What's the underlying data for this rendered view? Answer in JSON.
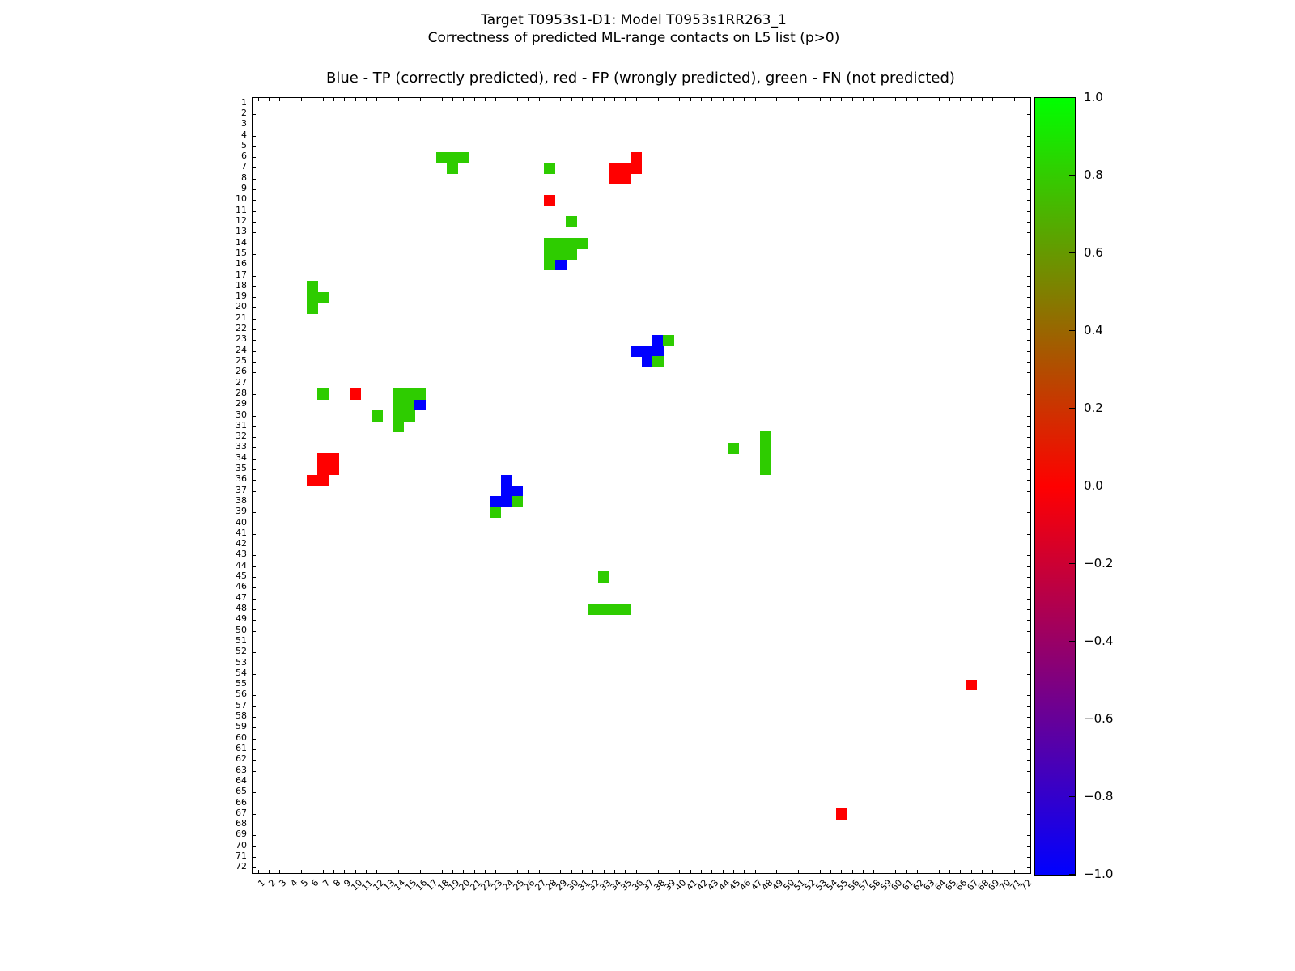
{
  "title_line1": "Target T0953s1-D1: Model T0953s1RR263_1",
  "title_line2": "Correctness of predicted ML-range contacts on L5 list (p>0)",
  "chart_data": {
    "type": "heatmap",
    "axes_title": "Blue - TP (correctly predicted), red - FP (wrongly predicted), green - FN (not predicted)",
    "x_range": [
      1,
      72
    ],
    "y_range": [
      1,
      72
    ],
    "x_tick_step": 1,
    "y_tick_step": 1,
    "grid": false,
    "legend_meaning": {
      "TP": "blue - correctly predicted",
      "FP": "red - wrongly predicted",
      "FN": "green - not predicted"
    },
    "colors": {
      "TP": "#0000ff",
      "FP": "#ff0000",
      "FN": "#2ecc00",
      "colorbar_top": "#00ff00",
      "colorbar_mid": "#ff0000",
      "colorbar_bottom": "#0000ff"
    },
    "colorbar": {
      "max": 1.0,
      "min": -1.0,
      "tick_labels": [
        "1.0",
        "0.8",
        "0.6",
        "0.4",
        "0.2",
        "0.0",
        "−0.2",
        "−0.4",
        "−0.6",
        "−0.8",
        "−1.0"
      ]
    },
    "cells": [
      [
        18,
        6,
        "FN"
      ],
      [
        19,
        6,
        "FN"
      ],
      [
        20,
        6,
        "FN"
      ],
      [
        36,
        6,
        "FP"
      ],
      [
        19,
        7,
        "FN"
      ],
      [
        28,
        7,
        "FN"
      ],
      [
        34,
        7,
        "FP"
      ],
      [
        35,
        7,
        "FP"
      ],
      [
        36,
        7,
        "FP"
      ],
      [
        34,
        8,
        "FP"
      ],
      [
        35,
        8,
        "FP"
      ],
      [
        28,
        10,
        "FP"
      ],
      [
        30,
        12,
        "FN"
      ],
      [
        28,
        14,
        "FN"
      ],
      [
        29,
        14,
        "FN"
      ],
      [
        30,
        14,
        "FN"
      ],
      [
        31,
        14,
        "FN"
      ],
      [
        28,
        15,
        "FN"
      ],
      [
        29,
        15,
        "FN"
      ],
      [
        30,
        15,
        "FN"
      ],
      [
        28,
        16,
        "FN"
      ],
      [
        29,
        16,
        "TP"
      ],
      [
        6,
        18,
        "FN"
      ],
      [
        6,
        19,
        "FN"
      ],
      [
        7,
        19,
        "FN"
      ],
      [
        6,
        20,
        "FN"
      ],
      [
        38,
        23,
        "TP"
      ],
      [
        39,
        23,
        "FN"
      ],
      [
        36,
        24,
        "TP"
      ],
      [
        37,
        24,
        "TP"
      ],
      [
        38,
        24,
        "TP"
      ],
      [
        37,
        25,
        "TP"
      ],
      [
        38,
        25,
        "FN"
      ],
      [
        7,
        28,
        "FN"
      ],
      [
        10,
        28,
        "FP"
      ],
      [
        14,
        28,
        "FN"
      ],
      [
        15,
        28,
        "FN"
      ],
      [
        16,
        28,
        "FN"
      ],
      [
        14,
        29,
        "FN"
      ],
      [
        15,
        29,
        "FN"
      ],
      [
        16,
        29,
        "TP"
      ],
      [
        12,
        30,
        "FN"
      ],
      [
        14,
        30,
        "FN"
      ],
      [
        15,
        30,
        "FN"
      ],
      [
        14,
        31,
        "FN"
      ],
      [
        48,
        32,
        "FN"
      ],
      [
        45,
        33,
        "FN"
      ],
      [
        48,
        33,
        "FN"
      ],
      [
        7,
        34,
        "FP"
      ],
      [
        8,
        34,
        "FP"
      ],
      [
        48,
        34,
        "FN"
      ],
      [
        7,
        35,
        "FP"
      ],
      [
        8,
        35,
        "FP"
      ],
      [
        48,
        35,
        "FN"
      ],
      [
        6,
        36,
        "FP"
      ],
      [
        7,
        36,
        "FP"
      ],
      [
        24,
        36,
        "TP"
      ],
      [
        24,
        37,
        "TP"
      ],
      [
        25,
        37,
        "TP"
      ],
      [
        23,
        38,
        "TP"
      ],
      [
        24,
        38,
        "TP"
      ],
      [
        25,
        38,
        "FN"
      ],
      [
        23,
        39,
        "FN"
      ],
      [
        33,
        45,
        "FN"
      ],
      [
        32,
        48,
        "FN"
      ],
      [
        33,
        48,
        "FN"
      ],
      [
        34,
        48,
        "FN"
      ],
      [
        35,
        48,
        "FN"
      ],
      [
        67,
        55,
        "FP"
      ],
      [
        55,
        67,
        "FP"
      ]
    ]
  }
}
